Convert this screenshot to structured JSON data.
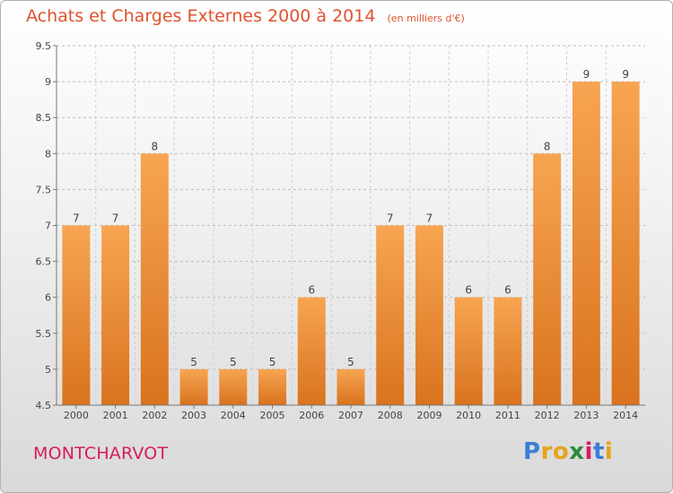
{
  "title": "Achats et Charges Externes 2000 à 2014",
  "unit_note": "(en milliers d'€)",
  "commune": "MONTCHARVOT",
  "logo": {
    "letters": [
      "P",
      "r",
      "o",
      "x",
      "i",
      "t",
      "i"
    ],
    "colors": [
      "#3a7fd5",
      "#e8a21a",
      "#e8a21a",
      "#2e8b3a",
      "#d81b60",
      "#3a7fd5",
      "#e8a21a"
    ]
  },
  "colors": {
    "bar_top": "#f7a552",
    "bar_bottom": "#d9731e",
    "title": "#e0522f",
    "commune": "#d81b60"
  },
  "chart_data": {
    "type": "bar",
    "categories": [
      "2000",
      "2001",
      "2002",
      "2003",
      "2004",
      "2005",
      "2006",
      "2007",
      "2008",
      "2009",
      "2010",
      "2011",
      "2012",
      "2013",
      "2014"
    ],
    "values": [
      7,
      7,
      8,
      5,
      5,
      5,
      6,
      5,
      7,
      7,
      6,
      6,
      8,
      9,
      9
    ],
    "title": "Achats et Charges Externes 2000 à 2014",
    "ylim": [
      4.5,
      9.5
    ],
    "yticks": [
      "4.5",
      "5",
      "5.5",
      "6",
      "6.5",
      "7",
      "7.5",
      "8",
      "8.5",
      "9",
      "9.5"
    ],
    "grid": true
  }
}
